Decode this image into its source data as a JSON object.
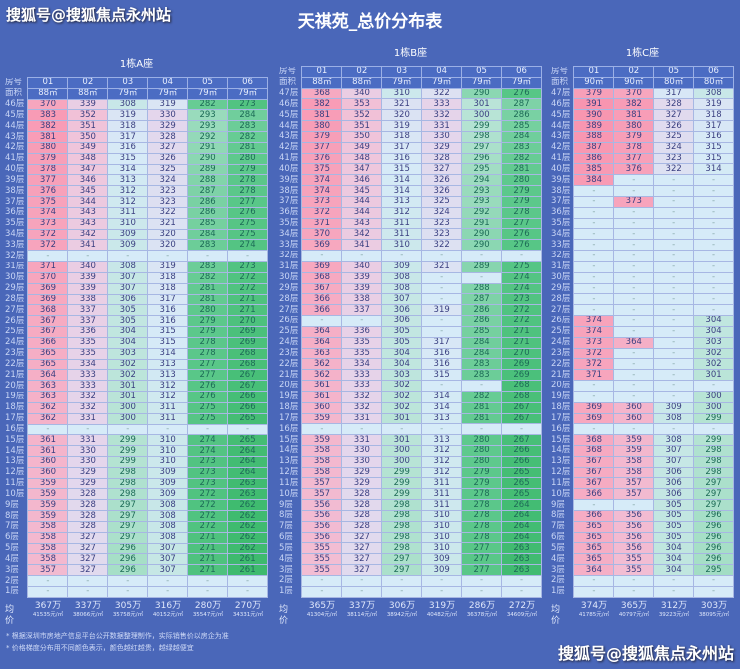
{
  "watermark": "搜狐号@搜狐焦点永州站",
  "title": "天祺苑_总价分布表",
  "labels": {
    "room": "房号",
    "area": "面积",
    "avg": "均价"
  },
  "colors": {
    "background": "#4a67b9",
    "high": "#f7a6be",
    "mid": "#d8ecf8",
    "low": "#3cb96c",
    "empty": "#d6ebf8"
  },
  "footnotes": [
    "* 根据深圳市房地产信息平台公开数据整理制作，实际销售价以房企为准",
    "* 价格梯度分布用不同颜色表示，颜色越红越贵，越绿越便宜"
  ],
  "tables": [
    {
      "name": "1栋A座",
      "rooms": [
        "01",
        "02",
        "03",
        "04",
        "05",
        "06"
      ],
      "areas": [
        "88㎡",
        "88㎡",
        "79㎡",
        "79㎡",
        "79㎡",
        "79㎡"
      ],
      "floors": [
        "46层",
        "45层",
        "44层",
        "43层",
        "42层",
        "41层",
        "40层",
        "39层",
        "38层",
        "37层",
        "36层",
        "35层",
        "34层",
        "33层",
        "32层",
        "31层",
        "30层",
        "29层",
        "28层",
        "27层",
        "26层",
        "25层",
        "24层",
        "23层",
        "22层",
        "21层",
        "20层",
        "19层",
        "18层",
        "17层",
        "16层",
        "15层",
        "14层",
        "13层",
        "12层",
        "11层",
        "10层",
        "9层",
        "8层",
        "7层",
        "6层",
        "5层",
        "4层",
        "3层",
        "2层",
        "1层"
      ],
      "rows": [
        [
          "370",
          "339",
          "308",
          "319",
          "282",
          "273"
        ],
        [
          "383",
          "352",
          "319",
          "330",
          "293",
          "284"
        ],
        [
          "382",
          "351",
          "318",
          "329",
          "293",
          "283"
        ],
        [
          "381",
          "350",
          "317",
          "328",
          "292",
          "282"
        ],
        [
          "380",
          "349",
          "316",
          "327",
          "291",
          "281"
        ],
        [
          "379",
          "348",
          "315",
          "326",
          "290",
          "280"
        ],
        [
          "378",
          "347",
          "314",
          "325",
          "289",
          "279"
        ],
        [
          "377",
          "346",
          "313",
          "324",
          "288",
          "278"
        ],
        [
          "376",
          "345",
          "312",
          "323",
          "287",
          "278"
        ],
        [
          "375",
          "344",
          "312",
          "323",
          "286",
          "277"
        ],
        [
          "374",
          "343",
          "311",
          "322",
          "286",
          "276"
        ],
        [
          "373",
          "343",
          "310",
          "321",
          "285",
          "275"
        ],
        [
          "372",
          "342",
          "309",
          "320",
          "284",
          "275"
        ],
        [
          "372",
          "341",
          "309",
          "320",
          "283",
          "274"
        ],
        [
          "-",
          "-",
          "-",
          "-",
          "-",
          "-"
        ],
        [
          "371",
          "340",
          "308",
          "319",
          "283",
          "273"
        ],
        [
          "370",
          "339",
          "307",
          "318",
          "282",
          "272"
        ],
        [
          "369",
          "339",
          "307",
          "318",
          "281",
          "272"
        ],
        [
          "369",
          "338",
          "306",
          "317",
          "281",
          "271"
        ],
        [
          "368",
          "337",
          "305",
          "316",
          "280",
          "271"
        ],
        [
          "367",
          "337",
          "305",
          "316",
          "279",
          "270"
        ],
        [
          "367",
          "336",
          "304",
          "315",
          "279",
          "269"
        ],
        [
          "366",
          "335",
          "304",
          "315",
          "278",
          "269"
        ],
        [
          "365",
          "335",
          "303",
          "314",
          "278",
          "268"
        ],
        [
          "365",
          "334",
          "302",
          "313",
          "277",
          "268"
        ],
        [
          "364",
          "333",
          "302",
          "313",
          "277",
          "267"
        ],
        [
          "363",
          "333",
          "301",
          "312",
          "276",
          "267"
        ],
        [
          "363",
          "332",
          "301",
          "312",
          "276",
          "266"
        ],
        [
          "362",
          "332",
          "300",
          "311",
          "275",
          "266"
        ],
        [
          "362",
          "331",
          "300",
          "311",
          "275",
          "265"
        ],
        [
          "-",
          "-",
          "-",
          "-",
          "-",
          "-"
        ],
        [
          "361",
          "331",
          "299",
          "310",
          "274",
          "265"
        ],
        [
          "361",
          "330",
          "299",
          "310",
          "274",
          "264"
        ],
        [
          "360",
          "330",
          "299",
          "310",
          "273",
          "264"
        ],
        [
          "360",
          "329",
          "298",
          "309",
          "273",
          "264"
        ],
        [
          "359",
          "329",
          "298",
          "309",
          "273",
          "263"
        ],
        [
          "359",
          "328",
          "298",
          "309",
          "272",
          "263"
        ],
        [
          "359",
          "328",
          "297",
          "308",
          "272",
          "262"
        ],
        [
          "359",
          "328",
          "297",
          "308",
          "272",
          "262"
        ],
        [
          "358",
          "328",
          "297",
          "308",
          "272",
          "262"
        ],
        [
          "358",
          "327",
          "297",
          "308",
          "271",
          "262"
        ],
        [
          "358",
          "327",
          "296",
          "307",
          "271",
          "262"
        ],
        [
          "358",
          "327",
          "296",
          "307",
          "271",
          "261"
        ],
        [
          "357",
          "327",
          "296",
          "307",
          "271",
          "261"
        ],
        [
          "-",
          "-",
          "-",
          "-",
          "-",
          "-"
        ],
        [
          "-",
          "-",
          "-",
          "-",
          "-",
          "-"
        ]
      ],
      "avg_total": [
        "367万",
        "337万",
        "305万",
        "316万",
        "280万",
        "270万"
      ],
      "avg_unit": [
        "41535元/㎡",
        "38066元/㎡",
        "35758元/㎡",
        "40152元/㎡",
        "35547元/㎡",
        "34331元/㎡"
      ]
    },
    {
      "name": "1栋B座",
      "rooms": [
        "01",
        "02",
        "03",
        "04",
        "05",
        "06"
      ],
      "areas": [
        "88㎡",
        "88㎡",
        "79㎡",
        "79㎡",
        "79㎡",
        "79㎡"
      ],
      "floors": [
        "47层",
        "46层",
        "45层",
        "44层",
        "43层",
        "42层",
        "41层",
        "40层",
        "39层",
        "38层",
        "37层",
        "36层",
        "35层",
        "34层",
        "33层",
        "32层",
        "31层",
        "30层",
        "29层",
        "28层",
        "27层",
        "26层",
        "25层",
        "24层",
        "23层",
        "22层",
        "21层",
        "20层",
        "19层",
        "18层",
        "17层",
        "16层",
        "15层",
        "14层",
        "13层",
        "12层",
        "11层",
        "10层",
        "9层",
        "8层",
        "7层",
        "6层",
        "5层",
        "4层",
        "3层",
        "2层",
        "1层"
      ],
      "rows": [
        [
          "368",
          "340",
          "310",
          "322",
          "290",
          "276"
        ],
        [
          "382",
          "353",
          "321",
          "333",
          "301",
          "287"
        ],
        [
          "381",
          "352",
          "320",
          "332",
          "300",
          "286"
        ],
        [
          "380",
          "351",
          "319",
          "331",
          "299",
          "285"
        ],
        [
          "379",
          "350",
          "318",
          "330",
          "298",
          "284"
        ],
        [
          "377",
          "349",
          "317",
          "329",
          "297",
          "283"
        ],
        [
          "376",
          "348",
          "316",
          "328",
          "296",
          "282"
        ],
        [
          "375",
          "347",
          "315",
          "327",
          "295",
          "281"
        ],
        [
          "374",
          "346",
          "314",
          "326",
          "294",
          "280"
        ],
        [
          "374",
          "345",
          "314",
          "326",
          "293",
          "279"
        ],
        [
          "373",
          "344",
          "313",
          "325",
          "293",
          "279"
        ],
        [
          "372",
          "344",
          "312",
          "324",
          "292",
          "278"
        ],
        [
          "371",
          "343",
          "311",
          "323",
          "291",
          "277"
        ],
        [
          "370",
          "342",
          "311",
          "323",
          "290",
          "276"
        ],
        [
          "369",
          "341",
          "310",
          "322",
          "290",
          "276"
        ],
        [
          "-",
          "-",
          "-",
          "-",
          "-",
          "-"
        ],
        [
          "369",
          "340",
          "309",
          "321",
          "289",
          "275"
        ],
        [
          "368",
          "339",
          "308",
          "-",
          "-",
          "274"
        ],
        [
          "367",
          "339",
          "308",
          "-",
          "288",
          "274"
        ],
        [
          "366",
          "338",
          "307",
          "-",
          "287",
          "273"
        ],
        [
          "366",
          "337",
          "306",
          "319",
          "286",
          "272"
        ],
        [
          "-",
          "-",
          "306",
          "-",
          "286",
          "272"
        ],
        [
          "364",
          "336",
          "305",
          "-",
          "285",
          "271"
        ],
        [
          "364",
          "335",
          "305",
          "317",
          "284",
          "271"
        ],
        [
          "363",
          "335",
          "304",
          "316",
          "284",
          "270"
        ],
        [
          "362",
          "334",
          "304",
          "316",
          "283",
          "269"
        ],
        [
          "362",
          "333",
          "303",
          "315",
          "283",
          "269"
        ],
        [
          "361",
          "333",
          "302",
          "-",
          "-",
          "268"
        ],
        [
          "361",
          "332",
          "302",
          "314",
          "282",
          "268"
        ],
        [
          "360",
          "332",
          "302",
          "314",
          "281",
          "267"
        ],
        [
          "359",
          "331",
          "301",
          "313",
          "281",
          "267"
        ],
        [
          "-",
          "-",
          "-",
          "-",
          "-",
          "-"
        ],
        [
          "359",
          "331",
          "301",
          "313",
          "280",
          "267"
        ],
        [
          "358",
          "330",
          "300",
          "312",
          "280",
          "266"
        ],
        [
          "358",
          "330",
          "300",
          "312",
          "280",
          "266"
        ],
        [
          "358",
          "329",
          "299",
          "312",
          "279",
          "265"
        ],
        [
          "357",
          "329",
          "299",
          "311",
          "279",
          "265"
        ],
        [
          "357",
          "328",
          "299",
          "311",
          "278",
          "265"
        ],
        [
          "356",
          "328",
          "298",
          "311",
          "278",
          "264"
        ],
        [
          "356",
          "328",
          "298",
          "310",
          "278",
          "264"
        ],
        [
          "356",
          "328",
          "298",
          "310",
          "278",
          "264"
        ],
        [
          "356",
          "327",
          "298",
          "310",
          "278",
          "264"
        ],
        [
          "355",
          "327",
          "298",
          "310",
          "277",
          "263"
        ],
        [
          "355",
          "327",
          "297",
          "309",
          "277",
          "263"
        ],
        [
          "355",
          "327",
          "297",
          "309",
          "277",
          "263"
        ],
        [
          "-",
          "-",
          "-",
          "-",
          "-",
          "-"
        ],
        [
          "-",
          "-",
          "-",
          "-",
          "-",
          "-"
        ]
      ],
      "avg_total": [
        "365万",
        "337万",
        "306万",
        "319万",
        "286万",
        "272万"
      ],
      "avg_unit": [
        "41304元/㎡",
        "38114元/㎡",
        "38942元/㎡",
        "40482元/㎡",
        "36378元/㎡",
        "34609元/㎡"
      ]
    },
    {
      "name": "1栋C座",
      "rooms": [
        "01",
        "02",
        "05",
        "06"
      ],
      "areas": [
        "90㎡",
        "90㎡",
        "80㎡",
        "80㎡"
      ],
      "floors": [
        "47层",
        "46层",
        "45层",
        "44层",
        "43层",
        "42层",
        "41层",
        "40层",
        "39层",
        "38层",
        "37层",
        "36层",
        "35层",
        "34层",
        "33层",
        "32层",
        "31层",
        "30层",
        "29层",
        "28层",
        "27层",
        "26层",
        "25层",
        "24层",
        "23层",
        "22层",
        "21层",
        "20层",
        "19层",
        "18层",
        "17层",
        "16层",
        "15层",
        "14层",
        "13层",
        "12层",
        "11层",
        "10层",
        "9层",
        "8层",
        "7层",
        "6层",
        "5层",
        "4层",
        "3层",
        "2层",
        "1层"
      ],
      "rows": [
        [
          "379",
          "370",
          "317",
          "308"
        ],
        [
          "391",
          "382",
          "328",
          "319"
        ],
        [
          "390",
          "381",
          "327",
          "318"
        ],
        [
          "389",
          "380",
          "326",
          "317"
        ],
        [
          "388",
          "379",
          "325",
          "316"
        ],
        [
          "387",
          "378",
          "324",
          "315"
        ],
        [
          "386",
          "377",
          "323",
          "315"
        ],
        [
          "385",
          "376",
          "322",
          "314"
        ],
        [
          "384",
          "-",
          "-",
          "-"
        ],
        [
          "-",
          "-",
          "-",
          "-"
        ],
        [
          "-",
          "373",
          "-",
          "-"
        ],
        [
          "-",
          "-",
          "-",
          "-"
        ],
        [
          "-",
          "-",
          "-",
          "-"
        ],
        [
          "-",
          "-",
          "-",
          "-"
        ],
        [
          "-",
          "-",
          "-",
          "-"
        ],
        [
          "-",
          "-",
          "-",
          "-"
        ],
        [
          "-",
          "-",
          "-",
          "-"
        ],
        [
          "-",
          "-",
          "-",
          "-"
        ],
        [
          "-",
          "-",
          "-",
          "-"
        ],
        [
          "-",
          "-",
          "-",
          "-"
        ],
        [
          "-",
          "-",
          "-",
          "-"
        ],
        [
          "374",
          "-",
          "-",
          "304"
        ],
        [
          "374",
          "-",
          "-",
          "304"
        ],
        [
          "373",
          "364",
          "-",
          "303"
        ],
        [
          "372",
          "-",
          "-",
          "302"
        ],
        [
          "372",
          "-",
          "-",
          "302"
        ],
        [
          "371",
          "-",
          "-",
          "301"
        ],
        [
          "-",
          "-",
          "-",
          "-"
        ],
        [
          "-",
          "-",
          "-",
          "300"
        ],
        [
          "369",
          "360",
          "309",
          "300"
        ],
        [
          "369",
          "360",
          "308",
          "299"
        ],
        [
          "-",
          "-",
          "-",
          "-"
        ],
        [
          "368",
          "359",
          "308",
          "299"
        ],
        [
          "368",
          "359",
          "307",
          "298"
        ],
        [
          "367",
          "358",
          "307",
          "298"
        ],
        [
          "367",
          "358",
          "306",
          "298"
        ],
        [
          "367",
          "357",
          "306",
          "297"
        ],
        [
          "366",
          "357",
          "306",
          "297"
        ],
        [
          "-",
          "-",
          "305",
          "297"
        ],
        [
          "366",
          "356",
          "305",
          "296"
        ],
        [
          "365",
          "356",
          "305",
          "296"
        ],
        [
          "365",
          "356",
          "305",
          "296"
        ],
        [
          "365",
          "356",
          "304",
          "296"
        ],
        [
          "365",
          "355",
          "304",
          "296"
        ],
        [
          "364",
          "355",
          "304",
          "295"
        ],
        [
          "-",
          "-",
          "-",
          "-"
        ],
        [
          "-",
          "-",
          "-",
          "-"
        ]
      ],
      "avg_total": [
        "374万",
        "365万",
        "312万",
        "303万"
      ],
      "avg_unit": [
        "41785元/㎡",
        "40797元/㎡",
        "39223元/㎡",
        "38095元/㎡"
      ]
    }
  ]
}
